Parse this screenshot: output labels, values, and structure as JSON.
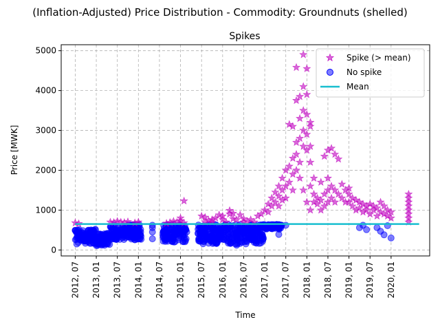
{
  "figure": {
    "suptitle": "(Inflation-Adjusted) Price Distribution - Commodity: Groundnuts (shelled)"
  },
  "colors": {
    "spike": "#bf00bf",
    "no_spike": "#0000ff",
    "mean": "#17becf",
    "grid": "#b0b0b0"
  },
  "chart_data": {
    "type": "scatter",
    "title": "Spikes",
    "xlabel": "Time",
    "ylabel": "Price [MWK]",
    "x_axis": "date",
    "xlim": [
      "2012-03",
      "2020-12"
    ],
    "ylim": [
      -150,
      5150
    ],
    "grid": true,
    "legend_position": "top-right",
    "x_ticks": [
      "2012, 07",
      "2013, 01",
      "2013, 07",
      "2014, 01",
      "2014, 07",
      "2015, 01",
      "2015, 07",
      "2016, 01",
      "2016, 07",
      "2017, 01",
      "2017, 07",
      "2018, 01",
      "2018, 07",
      "2019, 01",
      "2019, 07",
      "2020, 01"
    ],
    "y_ticks": [
      0,
      1000,
      2000,
      3000,
      4000,
      5000
    ],
    "mean_value": 650,
    "mean_x_range": [
      "2012-07",
      "2020-09"
    ],
    "legend": [
      {
        "label": "Spike (> mean)",
        "marker": "star"
      },
      {
        "label": "No spike",
        "marker": "circle"
      },
      {
        "label": "Mean",
        "marker": "line"
      }
    ],
    "series": [
      {
        "name": "Spike (> mean)",
        "marker": "star",
        "points": [
          [
            "2012-07",
            680
          ],
          [
            "2012-08",
            660
          ],
          [
            "2013-05",
            700
          ],
          [
            "2013-06",
            690
          ],
          [
            "2013-07",
            720
          ],
          [
            "2013-08",
            700
          ],
          [
            "2013-09",
            690
          ],
          [
            "2013-10",
            710
          ],
          [
            "2013-12",
            680
          ],
          [
            "2014-01",
            700
          ],
          [
            "2014-09",
            670
          ],
          [
            "2014-10",
            690
          ],
          [
            "2014-11",
            720
          ],
          [
            "2014-12",
            700
          ],
          [
            "2015-01",
            730
          ],
          [
            "2015-01",
            800
          ],
          [
            "2015-02",
            1230
          ],
          [
            "2015-02",
            680
          ],
          [
            "2015-07",
            850
          ],
          [
            "2015-08",
            820
          ],
          [
            "2015-08",
            700
          ],
          [
            "2015-09",
            740
          ],
          [
            "2015-10",
            700
          ],
          [
            "2015-10",
            760
          ],
          [
            "2015-11",
            800
          ],
          [
            "2015-12",
            880
          ],
          [
            "2016-01",
            760
          ],
          [
            "2016-01",
            850
          ],
          [
            "2016-02",
            700
          ],
          [
            "2016-03",
            990
          ],
          [
            "2016-03",
            900
          ],
          [
            "2016-04",
            920
          ],
          [
            "2016-04",
            780
          ],
          [
            "2016-05",
            760
          ],
          [
            "2016-06",
            880
          ],
          [
            "2016-07",
            780
          ],
          [
            "2016-07",
            700
          ],
          [
            "2016-08",
            720
          ],
          [
            "2016-09",
            760
          ],
          [
            "2016-10",
            700
          ],
          [
            "2016-11",
            850
          ],
          [
            "2016-12",
            900
          ],
          [
            "2017-01",
            1000
          ],
          [
            "2017-02",
            1150
          ],
          [
            "2017-02",
            950
          ],
          [
            "2017-03",
            1300
          ],
          [
            "2017-03",
            1100
          ],
          [
            "2017-04",
            1200
          ],
          [
            "2017-04",
            1450
          ],
          [
            "2017-05",
            1350
          ],
          [
            "2017-05",
            1600
          ],
          [
            "2017-05",
            1100
          ],
          [
            "2017-06",
            1500
          ],
          [
            "2017-06",
            1800
          ],
          [
            "2017-06",
            1250
          ],
          [
            "2017-07",
            2000
          ],
          [
            "2017-07",
            1600
          ],
          [
            "2017-07",
            1300
          ],
          [
            "2017-08",
            2100
          ],
          [
            "2017-08",
            1700
          ],
          [
            "2017-08",
            3150
          ],
          [
            "2017-09",
            2300
          ],
          [
            "2017-09",
            1900
          ],
          [
            "2017-09",
            1500
          ],
          [
            "2017-09",
            3100
          ],
          [
            "2017-10",
            2400
          ],
          [
            "2017-10",
            2700
          ],
          [
            "2017-10",
            2000
          ],
          [
            "2017-10",
            3750
          ],
          [
            "2017-10",
            4580
          ],
          [
            "2017-11",
            2800
          ],
          [
            "2017-11",
            3300
          ],
          [
            "2017-11",
            2200
          ],
          [
            "2017-11",
            3850
          ],
          [
            "2017-11",
            1800
          ],
          [
            "2017-12",
            3000
          ],
          [
            "2017-12",
            3500
          ],
          [
            "2017-12",
            2600
          ],
          [
            "2017-12",
            4100
          ],
          [
            "2017-12",
            4900
          ],
          [
            "2017-12",
            1500
          ],
          [
            "2018-01",
            2500
          ],
          [
            "2018-01",
            3400
          ],
          [
            "2018-01",
            2900
          ],
          [
            "2018-01",
            4550
          ],
          [
            "2018-01",
            1200
          ],
          [
            "2018-01",
            3900
          ],
          [
            "2018-02",
            3200
          ],
          [
            "2018-02",
            2200
          ],
          [
            "2018-02",
            1600
          ],
          [
            "2018-02",
            3100
          ],
          [
            "2018-02",
            1000
          ],
          [
            "2018-02",
            2600
          ],
          [
            "2018-03",
            1800
          ],
          [
            "2018-03",
            1400
          ],
          [
            "2018-03",
            1200
          ],
          [
            "2018-04",
            1300
          ],
          [
            "2018-04",
            1150
          ],
          [
            "2018-05",
            1700
          ],
          [
            "2018-05",
            1250
          ],
          [
            "2018-05",
            1000
          ],
          [
            "2018-06",
            1400
          ],
          [
            "2018-06",
            2350
          ],
          [
            "2018-06",
            1100
          ],
          [
            "2018-07",
            1500
          ],
          [
            "2018-07",
            2500
          ],
          [
            "2018-07",
            1200
          ],
          [
            "2018-07",
            1800
          ],
          [
            "2018-08",
            2550
          ],
          [
            "2018-08",
            1300
          ],
          [
            "2018-08",
            1600
          ],
          [
            "2018-09",
            2400
          ],
          [
            "2018-09",
            1500
          ],
          [
            "2018-09",
            1200
          ],
          [
            "2018-10",
            2280
          ],
          [
            "2018-10",
            1400
          ],
          [
            "2018-11",
            1650
          ],
          [
            "2018-11",
            1300
          ],
          [
            "2018-12",
            1500
          ],
          [
            "2018-12",
            1200
          ],
          [
            "2019-01",
            1550
          ],
          [
            "2019-01",
            1400
          ],
          [
            "2019-01",
            1200
          ],
          [
            "2019-02",
            1300
          ],
          [
            "2019-02",
            1100
          ],
          [
            "2019-03",
            1250
          ],
          [
            "2019-03",
            1000
          ],
          [
            "2019-04",
            1200
          ],
          [
            "2019-04",
            1050
          ],
          [
            "2019-05",
            1150
          ],
          [
            "2019-05",
            950
          ],
          [
            "2019-06",
            1100
          ],
          [
            "2019-06",
            1000
          ],
          [
            "2019-07",
            1150
          ],
          [
            "2019-07",
            900
          ],
          [
            "2019-08",
            1100
          ],
          [
            "2019-08",
            1000
          ],
          [
            "2019-09",
            1050
          ],
          [
            "2019-09",
            850
          ],
          [
            "2019-10",
            1200
          ],
          [
            "2019-10",
            950
          ],
          [
            "2019-11",
            1100
          ],
          [
            "2019-11",
            900
          ],
          [
            "2019-12",
            1000
          ],
          [
            "2019-12",
            850
          ],
          [
            "2020-01",
            950
          ],
          [
            "2020-01",
            800
          ],
          [
            "2020-06",
            1400
          ],
          [
            "2020-06",
            1300
          ],
          [
            "2020-06",
            1200
          ],
          [
            "2020-06",
            1100
          ],
          [
            "2020-06",
            1000
          ],
          [
            "2020-06",
            900
          ],
          [
            "2020-06",
            800
          ],
          [
            "2020-06",
            700
          ]
        ]
      },
      {
        "name": "No spike",
        "marker": "circle",
        "ranges": [
          {
            "from": "2012-07",
            "to": "2012-12",
            "min": 150,
            "max": 520
          },
          {
            "from": "2013-01",
            "to": "2013-04",
            "min": 110,
            "max": 420
          },
          {
            "from": "2013-05",
            "to": "2014-01",
            "min": 250,
            "max": 640
          },
          {
            "from": "2014-08",
            "to": "2015-02",
            "min": 200,
            "max": 640
          },
          {
            "from": "2015-06",
            "to": "2016-12",
            "min": 150,
            "max": 640
          },
          {
            "from": "2017-01",
            "to": "2017-05",
            "min": 520,
            "max": 640
          }
        ],
        "points": [
          [
            "2014-05",
            280
          ],
          [
            "2014-05",
            450
          ],
          [
            "2014-05",
            560
          ],
          [
            "2014-05",
            620
          ],
          [
            "2016-05",
            120
          ],
          [
            "2016-10",
            190
          ],
          [
            "2017-05",
            390
          ],
          [
            "2017-05",
            600
          ],
          [
            "2017-07",
            620
          ],
          [
            "2019-04",
            560
          ],
          [
            "2019-05",
            620
          ],
          [
            "2019-06",
            510
          ],
          [
            "2019-09",
            560
          ],
          [
            "2019-10",
            470
          ],
          [
            "2019-11",
            380
          ],
          [
            "2019-12",
            610
          ],
          [
            "2020-01",
            300
          ]
        ]
      }
    ]
  }
}
